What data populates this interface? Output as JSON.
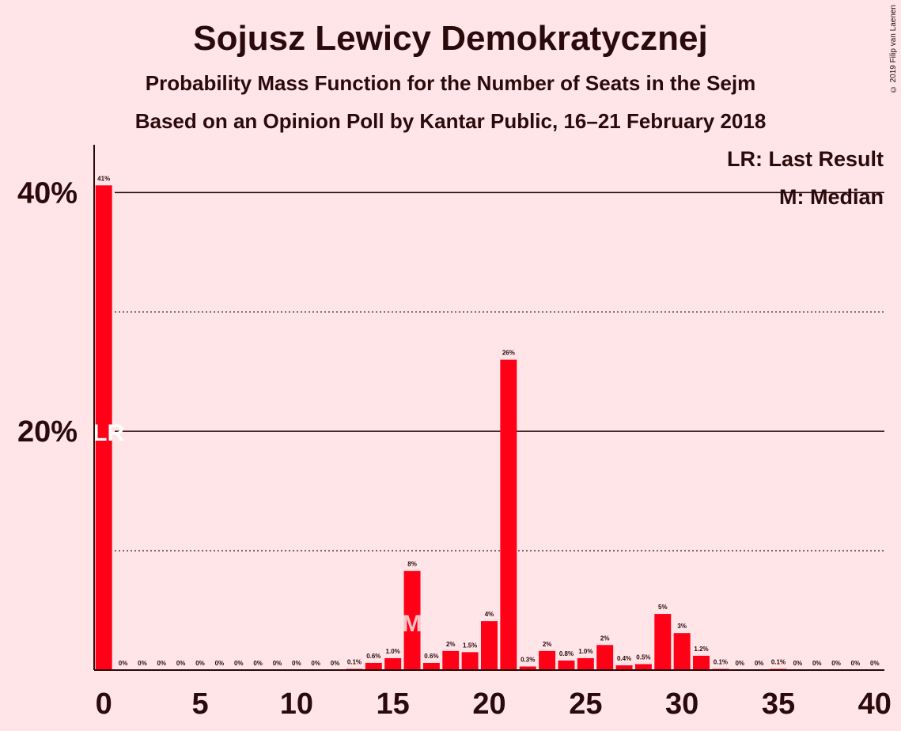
{
  "title": "Sojusz Lewicy Demokratycznej",
  "subtitle": "Probability Mass Function for the Number of Seats in the Sejm",
  "subtitle2": "Based on an Opinion Poll by Kantar Public, 16–21 February 2018",
  "copyright": "© 2019 Filip van Laenen",
  "colors": {
    "bar": "#ff0016",
    "background": "#ffe5e8",
    "text": "#2a0a0a"
  },
  "chart_data": {
    "type": "bar",
    "x": [
      0,
      1,
      2,
      3,
      4,
      5,
      6,
      7,
      8,
      9,
      10,
      11,
      12,
      13,
      14,
      15,
      16,
      17,
      18,
      19,
      20,
      21,
      22,
      23,
      24,
      25,
      26,
      27,
      28,
      29,
      30,
      31,
      32,
      33,
      34,
      35,
      36,
      37,
      38,
      39,
      40
    ],
    "values": [
      40.6,
      0,
      0,
      0,
      0,
      0,
      0,
      0,
      0,
      0,
      0,
      0,
      0,
      0.1,
      0.6,
      1.0,
      8.3,
      0.6,
      1.6,
      1.5,
      4.1,
      26.0,
      0.3,
      1.6,
      0.8,
      1.0,
      2.1,
      0.4,
      0.5,
      4.7,
      3.1,
      1.2,
      0.1,
      0,
      0,
      0.1,
      0,
      0,
      0,
      0,
      0
    ],
    "value_labels": [
      "41%",
      "0%",
      "0%",
      "0%",
      "0%",
      "0%",
      "0%",
      "0%",
      "0%",
      "0%",
      "0%",
      "0%",
      "0%",
      "0.1%",
      "0.6%",
      "1.0%",
      "8%",
      "0.6%",
      "2%",
      "1.5%",
      "4%",
      "26%",
      "0.3%",
      "2%",
      "0.8%",
      "1.0%",
      "2%",
      "0.4%",
      "0.5%",
      "5%",
      "3%",
      "1.2%",
      "0.1%",
      "0%",
      "0%",
      "0.1%",
      "0%",
      "0%",
      "0%",
      "0%",
      "0%"
    ],
    "x_ticks": [
      "0",
      "5",
      "10",
      "15",
      "20",
      "25",
      "30",
      "35",
      "40"
    ],
    "x_tick_values": [
      0,
      5,
      10,
      15,
      20,
      25,
      30,
      35,
      40
    ],
    "y_ticks": [
      "20%",
      "40%"
    ],
    "y_tick_values": [
      20,
      40
    ],
    "ylim": [
      0,
      44
    ],
    "xlim": [
      -0.5,
      40.5
    ],
    "grid": {
      "solid": [
        20,
        40
      ],
      "dotted": [
        10,
        30
      ]
    },
    "last_result": {
      "seat": 0,
      "label": "LR"
    },
    "median": {
      "seat": 16,
      "label": "M"
    },
    "legend": [
      "LR: Last Result",
      "M: Median"
    ],
    "legend_position": "top-right"
  }
}
